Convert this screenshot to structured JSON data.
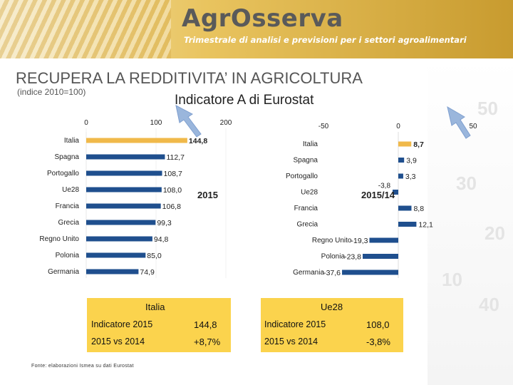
{
  "header": {
    "brand": "AgrOsserva",
    "tagline": "Trimestrale di analisi e previsioni per i settori agroalimentari"
  },
  "slide": {
    "title": "RECUPERA LA REDDITIVITA’ IN AGRICOLTURA",
    "subtitle": "(indice 2010=100)",
    "chart_title": "Indicatore A di Eurostat"
  },
  "chart_data": [
    {
      "type": "bar",
      "orientation": "horizontal",
      "tag": "2015",
      "categories": [
        "Italia",
        "Spagna",
        "Portogallo",
        "Ue28",
        "Francia",
        "Grecia",
        "Regno Unito",
        "Polonia",
        "Germania"
      ],
      "values": [
        144.8,
        112.7,
        108.7,
        108.0,
        106.8,
        99.3,
        94.8,
        85.0,
        74.9
      ],
      "value_labels": [
        "144,8",
        "112,7",
        "108,7",
        "108,0",
        "106,8",
        "99,3",
        "94,8",
        "85,0",
        "74,9"
      ],
      "xlim": [
        0,
        200
      ],
      "ticks": [
        "0",
        "100",
        "200"
      ],
      "tick_values": [
        0,
        100,
        200
      ],
      "highlight": "Italia"
    },
    {
      "type": "bar",
      "orientation": "horizontal",
      "tag": "2015/14",
      "categories": [
        "Italia",
        "Spagna",
        "Portogallo",
        "Ue28",
        "Francia",
        "Grecia",
        "Regno Unito",
        "Polonia",
        "Germania"
      ],
      "values": [
        8.7,
        3.9,
        3.3,
        -3.8,
        8.8,
        12.1,
        -19.3,
        -23.8,
        -37.6
      ],
      "value_labels": [
        "8,7",
        "3,9",
        "3,3",
        "-3,8",
        "8,8",
        "12,1",
        "-19,3",
        "-23,8",
        "-37,6"
      ],
      "xlim": [
        -50,
        50
      ],
      "ticks": [
        "-50",
        "0",
        "50"
      ],
      "tick_values": [
        -50,
        0,
        50
      ],
      "highlight": "Italia"
    }
  ],
  "colors": {
    "highlight": "#f0b94a",
    "bar": "#1f4f8e",
    "table": "#fbd34d",
    "arrow": "#9ab6dc"
  },
  "tables": {
    "italia": {
      "title": "Italia",
      "rows": [
        {
          "label": "Indicatore 2015",
          "value": "144,8"
        },
        {
          "label": "2015 vs 2014",
          "value": "+8,7%"
        }
      ]
    },
    "ue28": {
      "title": "Ue28",
      "rows": [
        {
          "label": "Indicatore 2015",
          "value": "108,0"
        },
        {
          "label": "2015 vs 2014",
          "value": "-3,8%"
        }
      ]
    }
  },
  "source": "Fonte: elaborazioni Ismea su dati Eurostat",
  "background_numbers": [
    "50",
    "40",
    "30",
    "20",
    "10"
  ]
}
